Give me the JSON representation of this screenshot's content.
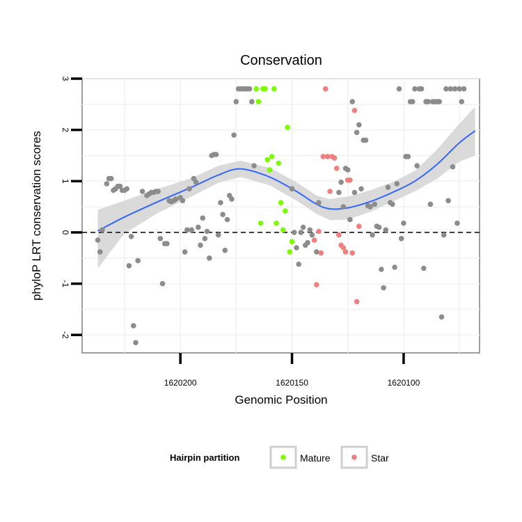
{
  "chart_data": {
    "type": "scatter",
    "title": "Conservation",
    "xlabel": "Genomic Position",
    "ylabel": "phyloP LRT conservation scores",
    "x_reversed": true,
    "xlim": [
      1620244,
      1620066
    ],
    "ylim": [
      -2.35,
      3.0
    ],
    "x_ticks": [
      1620200,
      1620150,
      1620100
    ],
    "y_ticks": [
      -2,
      -1,
      0,
      1,
      2,
      3
    ],
    "reference_line": {
      "y": 0,
      "style": "dashed"
    },
    "legend": {
      "title": "Hairpin partition",
      "placement": "bottom",
      "entries": [
        {
          "label": "Mature",
          "color": "#7CFC00"
        },
        {
          "label": "Star",
          "color": "#F08080"
        }
      ]
    },
    "colors": {
      "other": "#8C8C8C",
      "Mature": "#7CFC00",
      "Star": "#F08080",
      "smooth": "#3366FF",
      "band": "#D3D3D3"
    },
    "smooth": {
      "x": [
        1620237,
        1620225,
        1620210,
        1620195,
        1620183,
        1620173,
        1620160,
        1620148,
        1620139,
        1620133,
        1620125,
        1620115,
        1620105,
        1620095,
        1620085,
        1620075,
        1620068
      ],
      "y": [
        0.03,
        0.3,
        0.6,
        0.88,
        1.12,
        1.24,
        1.08,
        0.8,
        0.55,
        0.46,
        0.48,
        0.6,
        0.78,
        1.0,
        1.33,
        1.75,
        1.98
      ],
      "lower": [
        -0.7,
        -0.02,
        0.38,
        0.7,
        0.97,
        1.08,
        0.92,
        0.62,
        0.36,
        0.24,
        0.25,
        0.4,
        0.6,
        0.8,
        1.05,
        1.38,
        1.5
      ],
      "upper": [
        0.44,
        0.62,
        0.85,
        1.06,
        1.3,
        1.4,
        1.26,
        0.98,
        0.72,
        0.65,
        0.7,
        0.82,
        0.98,
        1.2,
        1.62,
        2.12,
        2.45
      ]
    },
    "series": [
      {
        "name": "Other",
        "points": [
          [
            1620237,
            -0.15
          ],
          [
            1620236,
            -0.38
          ],
          [
            1620235,
            0.05
          ],
          [
            1620233,
            0.95
          ],
          [
            1620232,
            1.05
          ],
          [
            1620231,
            1.05
          ],
          [
            1620230,
            0.82
          ],
          [
            1620229,
            0.85
          ],
          [
            1620228,
            0.9
          ],
          [
            1620227,
            0.9
          ],
          [
            1620226,
            0.82
          ],
          [
            1620225,
            0.82
          ],
          [
            1620224,
            0.85
          ],
          [
            1620223,
            -0.65
          ],
          [
            1620222,
            -0.08
          ],
          [
            1620221,
            -1.82
          ],
          [
            1620220,
            -2.15
          ],
          [
            1620219,
            -0.55
          ],
          [
            1620217,
            0.8
          ],
          [
            1620215,
            0.72
          ],
          [
            1620214,
            0.75
          ],
          [
            1620213,
            0.78
          ],
          [
            1620212,
            0.78
          ],
          [
            1620211,
            0.8
          ],
          [
            1620210,
            0.8
          ],
          [
            1620209,
            -0.12
          ],
          [
            1620208,
            -1.0
          ],
          [
            1620207,
            -0.22
          ],
          [
            1620206,
            -0.22
          ],
          [
            1620205,
            0.62
          ],
          [
            1620204,
            0.6
          ],
          [
            1620203,
            0.62
          ],
          [
            1620202,
            0.65
          ],
          [
            1620200,
            0.68
          ],
          [
            1620199,
            0.62
          ],
          [
            1620198,
            -0.38
          ],
          [
            1620197,
            0.05
          ],
          [
            1620196,
            0.85
          ],
          [
            1620195,
            0.05
          ],
          [
            1620194,
            1.05
          ],
          [
            1620193,
            0.98
          ],
          [
            1620192,
            0.1
          ],
          [
            1620191,
            -0.25
          ],
          [
            1620190,
            0.28
          ],
          [
            1620189,
            -0.12
          ],
          [
            1620188,
            0.02
          ],
          [
            1620187,
            -0.5
          ],
          [
            1620186,
            1.5
          ],
          [
            1620185,
            1.52
          ],
          [
            1620184,
            1.52
          ],
          [
            1620183,
            -0.05
          ],
          [
            1620182,
            0.58
          ],
          [
            1620181,
            0.35
          ],
          [
            1620180,
            -0.35
          ],
          [
            1620179,
            0.25
          ],
          [
            1620178,
            0.72
          ],
          [
            1620177,
            0.65
          ],
          [
            1620176,
            1.9
          ],
          [
            1620175,
            2.55
          ],
          [
            1620174,
            2.8
          ],
          [
            1620173,
            2.8
          ],
          [
            1620172,
            2.8
          ],
          [
            1620171,
            2.8
          ],
          [
            1620170,
            2.8
          ],
          [
            1620169,
            2.8
          ],
          [
            1620168,
            2.55
          ],
          [
            1620167,
            1.3
          ],
          [
            1620150,
            0.85
          ],
          [
            1620149,
            0.0
          ],
          [
            1620148,
            -0.3
          ],
          [
            1620147,
            -0.62
          ],
          [
            1620146,
            0.0
          ],
          [
            1620145,
            0.1
          ],
          [
            1620144,
            -0.25
          ],
          [
            1620143,
            -0.2
          ],
          [
            1620142,
            0.05
          ],
          [
            1620141,
            -0.05
          ],
          [
            1620139,
            -0.38
          ],
          [
            1620138,
            0.58
          ],
          [
            1620129,
            0.78
          ],
          [
            1620128,
            0.98
          ],
          [
            1620127,
            0.5
          ],
          [
            1620126,
            1.25
          ],
          [
            1620125,
            1.22
          ],
          [
            1620124,
            0.25
          ],
          [
            1620123,
            2.55
          ],
          [
            1620122,
            0.78
          ],
          [
            1620121,
            1.95
          ],
          [
            1620120,
            2.1
          ],
          [
            1620119,
            0.85
          ],
          [
            1620118,
            1.8
          ],
          [
            1620117,
            1.8
          ],
          [
            1620116,
            0.52
          ],
          [
            1620115,
            0.5
          ],
          [
            1620114,
            -0.05
          ],
          [
            1620113,
            0.55
          ],
          [
            1620112,
            0.12
          ],
          [
            1620111,
            0.1
          ],
          [
            1620110,
            -0.72
          ],
          [
            1620109,
            -1.08
          ],
          [
            1620108,
            0.05
          ],
          [
            1620107,
            0.88
          ],
          [
            1620106,
            0.58
          ],
          [
            1620105,
            0.55
          ],
          [
            1620104,
            -0.68
          ],
          [
            1620103,
            0.95
          ],
          [
            1620102,
            2.8
          ],
          [
            1620101,
            -0.12
          ],
          [
            1620100,
            0.18
          ],
          [
            1620099,
            1.48
          ],
          [
            1620098,
            1.48
          ],
          [
            1620097,
            2.55
          ],
          [
            1620096,
            2.55
          ],
          [
            1620095,
            2.8
          ],
          [
            1620094,
            1.3
          ],
          [
            1620093,
            2.8
          ],
          [
            1620092,
            2.8
          ],
          [
            1620091,
            -0.7
          ],
          [
            1620090,
            2.55
          ],
          [
            1620089,
            2.55
          ],
          [
            1620088,
            0.55
          ],
          [
            1620087,
            2.55
          ],
          [
            1620086,
            2.55
          ],
          [
            1620085,
            2.55
          ],
          [
            1620084,
            2.55
          ],
          [
            1620083,
            -1.65
          ],
          [
            1620082,
            -0.05
          ],
          [
            1620081,
            2.8
          ],
          [
            1620080,
            0.62
          ],
          [
            1620079,
            2.8
          ],
          [
            1620078,
            1.28
          ],
          [
            1620077,
            2.8
          ],
          [
            1620076,
            0.18
          ],
          [
            1620075,
            2.8
          ],
          [
            1620074,
            2.55
          ],
          [
            1620073,
            2.8
          ]
        ]
      },
      {
        "name": "Mature",
        "points": [
          [
            1620166,
            2.8
          ],
          [
            1620165,
            2.55
          ],
          [
            1620164,
            0.18
          ],
          [
            1620163,
            2.8
          ],
          [
            1620162,
            2.8
          ],
          [
            1620161,
            1.42
          ],
          [
            1620160,
            1.22
          ],
          [
            1620159,
            1.48
          ],
          [
            1620158,
            2.8
          ],
          [
            1620157,
            0.18
          ],
          [
            1620156,
            1.35
          ],
          [
            1620155,
            0.58
          ],
          [
            1620154,
            0.05
          ],
          [
            1620153,
            0.42
          ],
          [
            1620152,
            2.05
          ],
          [
            1620151,
            -0.38
          ],
          [
            1620150,
            -0.18
          ]
        ]
      },
      {
        "name": "Star",
        "points": [
          [
            1620140,
            -0.15
          ],
          [
            1620139,
            -1.02
          ],
          [
            1620138,
            0.02
          ],
          [
            1620137,
            -0.4
          ],
          [
            1620136,
            1.48
          ],
          [
            1620135,
            2.8
          ],
          [
            1620134,
            1.48
          ],
          [
            1620133,
            0.8
          ],
          [
            1620132,
            1.48
          ],
          [
            1620131,
            1.45
          ],
          [
            1620130,
            1.25
          ],
          [
            1620129,
            -0.05
          ],
          [
            1620128,
            -0.25
          ],
          [
            1620127,
            -0.3
          ],
          [
            1620126,
            -0.38
          ],
          [
            1620125,
            1.02
          ],
          [
            1620124,
            1.02
          ],
          [
            1620123,
            -0.4
          ],
          [
            1620122,
            2.38
          ],
          [
            1620121,
            -1.35
          ],
          [
            1620120,
            0.12
          ]
        ]
      }
    ]
  }
}
